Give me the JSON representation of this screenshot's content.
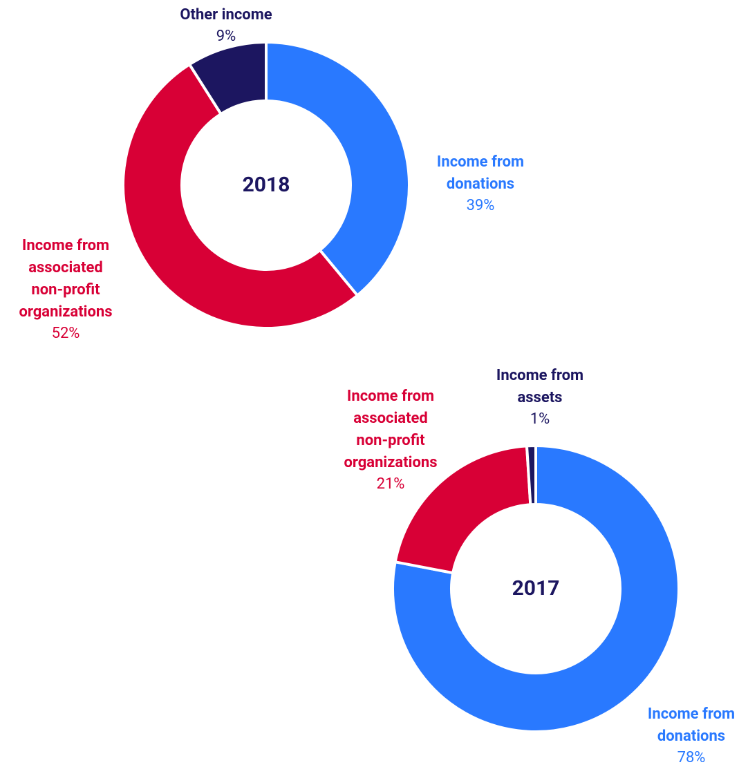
{
  "chart_data": [
    {
      "type": "pie",
      "donut": true,
      "title": "2018",
      "categories": [
        "Income from donations",
        "Income from associated non-profit organizations",
        "Other income"
      ],
      "values": [
        39,
        52,
        9
      ],
      "value_labels": [
        "39%",
        "52%",
        "9%"
      ],
      "colors": [
        "#2979ff",
        "#d80036",
        "#1c1660"
      ]
    },
    {
      "type": "pie",
      "donut": true,
      "title": "2017",
      "categories": [
        "Income from donations",
        "Income from associated non-profit organizations",
        "Income from assets"
      ],
      "values": [
        78,
        21,
        1
      ],
      "value_labels": [
        "78%",
        "21%",
        "1%"
      ],
      "colors": [
        "#2979ff",
        "#d80036",
        "#1c1660"
      ]
    }
  ]
}
